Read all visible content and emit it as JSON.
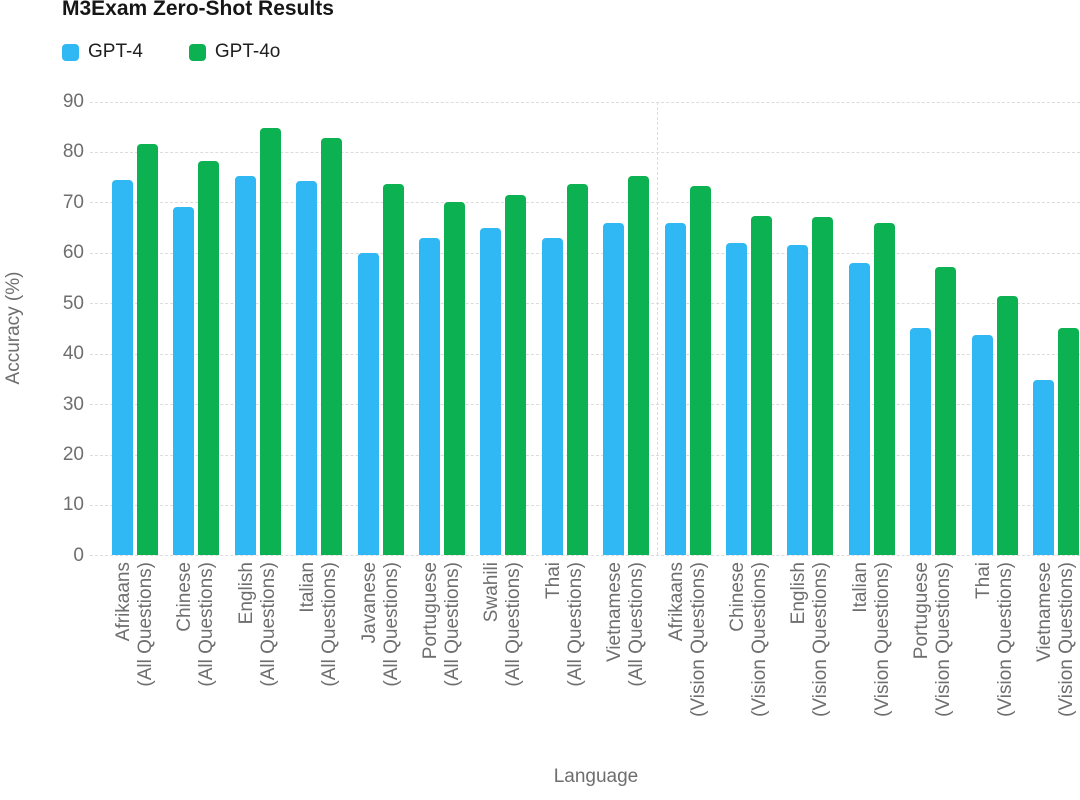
{
  "title": "M3Exam Zero-Shot Results",
  "legend": [
    {
      "label": "GPT-4",
      "color": "#2FB8F4"
    },
    {
      "label": "GPT-4o",
      "color": "#0CB151"
    }
  ],
  "y_axis": {
    "title": "Accuracy (%)"
  },
  "x_axis": {
    "title": "Language"
  },
  "chart_data": {
    "type": "bar",
    "title": "M3Exam Zero-Shot Results",
    "xlabel": "Language",
    "ylabel": "Accuracy (%)",
    "ylim": [
      0,
      90
    ],
    "yticks": [
      0,
      10,
      20,
      30,
      40,
      50,
      60,
      70,
      80,
      90
    ],
    "grid": true,
    "legend_position": "top-left",
    "categories": [
      {
        "language": "Afrikaans",
        "subset": "(All Questions)"
      },
      {
        "language": "Chinese",
        "subset": "(All Questions)"
      },
      {
        "language": "English",
        "subset": "(All Questions)"
      },
      {
        "language": "Italian",
        "subset": "(All Questions)"
      },
      {
        "language": "Javanese",
        "subset": "(All Questions)"
      },
      {
        "language": "Portuguese",
        "subset": "(All Questions)"
      },
      {
        "language": "Swahili",
        "subset": "(All Questions)"
      },
      {
        "language": "Thai",
        "subset": "(All Questions)"
      },
      {
        "language": "Vietnamese",
        "subset": "(All Questions)"
      },
      {
        "language": "Afrikaans",
        "subset": "(Vision Questions)"
      },
      {
        "language": "Chinese",
        "subset": "(Vision Questions)"
      },
      {
        "language": "English",
        "subset": "(Vision Questions)"
      },
      {
        "language": "Italian",
        "subset": "(Vision Questions)"
      },
      {
        "language": "Portuguese",
        "subset": "(Vision Questions)"
      },
      {
        "language": "Thai",
        "subset": "(Vision Questions)"
      },
      {
        "language": "Vietnamese",
        "subset": "(Vision Questions)"
      }
    ],
    "series": [
      {
        "name": "GPT-4",
        "color": "#2FB8F4",
        "values": [
          74.5,
          69.0,
          75.3,
          74.3,
          60.0,
          63.0,
          65.0,
          63.0,
          66.0,
          66.0,
          62.0,
          61.5,
          58.0,
          45.0,
          43.8,
          34.8
        ]
      },
      {
        "name": "GPT-4o",
        "color": "#0CB151",
        "values": [
          81.6,
          78.3,
          84.7,
          82.7,
          73.6,
          70.0,
          71.5,
          73.6,
          75.3,
          73.3,
          67.3,
          67.0,
          66.0,
          57.1,
          51.5,
          45.0
        ]
      }
    ],
    "divider_after_category_index": 8
  }
}
